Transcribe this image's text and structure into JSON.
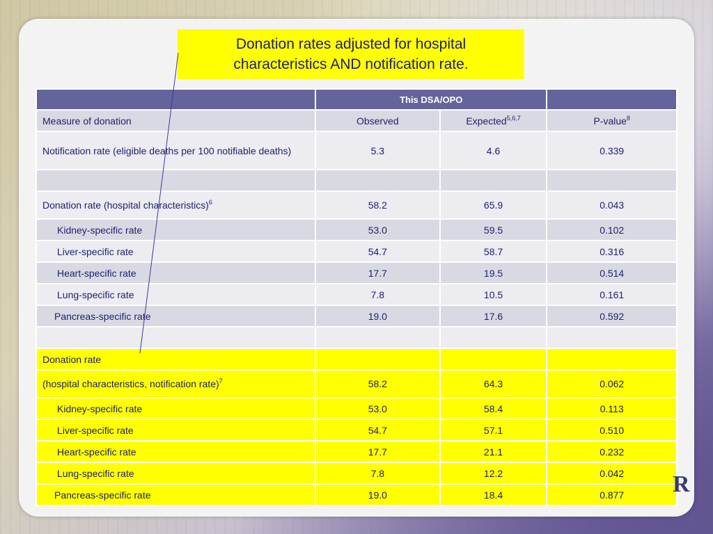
{
  "title": {
    "line1": "Donation rates adjusted for hospital",
    "line2": "characteristics AND notification rate."
  },
  "table": {
    "header": {
      "group_label": "This DSA/OPO"
    },
    "column_labels": {
      "measure": "Measure of donation",
      "observed": "Observed",
      "expected": "Expected",
      "expected_sup": "5,6,7",
      "pvalue": "P-value",
      "pvalue_sup": "8"
    },
    "notification": {
      "label": "Notification rate (eligible deaths per 100 notifiable deaths)",
      "observed": "5.3",
      "expected": "4.6",
      "pvalue": "0.339"
    },
    "hospital": {
      "label": "Donation rate (hospital characteristics)",
      "label_sup": "6",
      "observed": "58.2",
      "expected": "65.9",
      "pvalue": "0.043",
      "rows": [
        {
          "label": "Kidney-specific rate",
          "observed": "53.0",
          "expected": "59.5",
          "pvalue": "0.102"
        },
        {
          "label": "Liver-specific rate",
          "observed": "54.7",
          "expected": "58.7",
          "pvalue": "0.316"
        },
        {
          "label": "Heart-specific rate",
          "observed": "17.7",
          "expected": "19.5",
          "pvalue": "0.514"
        },
        {
          "label": "Lung-specific rate",
          "observed": "7.8",
          "expected": "10.5",
          "pvalue": "0.161"
        },
        {
          "label": "Pancreas-specific rate",
          "observed": "19.0",
          "expected": "17.6",
          "pvalue": "0.592"
        }
      ]
    },
    "combined": {
      "label_line1": "Donation rate",
      "label_line2": "(hospital characteristics, notification rate)",
      "label_sup": "7",
      "observed": "58.2",
      "expected": "64.3",
      "pvalue": "0.062",
      "rows": [
        {
          "label": "Kidney-specific rate",
          "observed": "53.0",
          "expected": "58.4",
          "pvalue": "0.113"
        },
        {
          "label": "Liver-specific rate",
          "observed": "54.7",
          "expected": "57.1",
          "pvalue": "0.510"
        },
        {
          "label": "Heart-specific rate",
          "observed": "17.7",
          "expected": "21.1",
          "pvalue": "0.232"
        },
        {
          "label": "Lung-specific rate",
          "observed": "7.8",
          "expected": "12.2",
          "pvalue": "0.042"
        },
        {
          "label": "Pancreas-specific rate",
          "observed": "19.0",
          "expected": "18.4",
          "pvalue": "0.877"
        }
      ]
    }
  },
  "colors": {
    "header_bg": "#64649c",
    "row_dark": "#d9d9e3",
    "row_light": "#ececf1",
    "highlight": "#ffff00",
    "text": "#1e1e6e"
  },
  "logo": {
    "glyph": "R"
  }
}
